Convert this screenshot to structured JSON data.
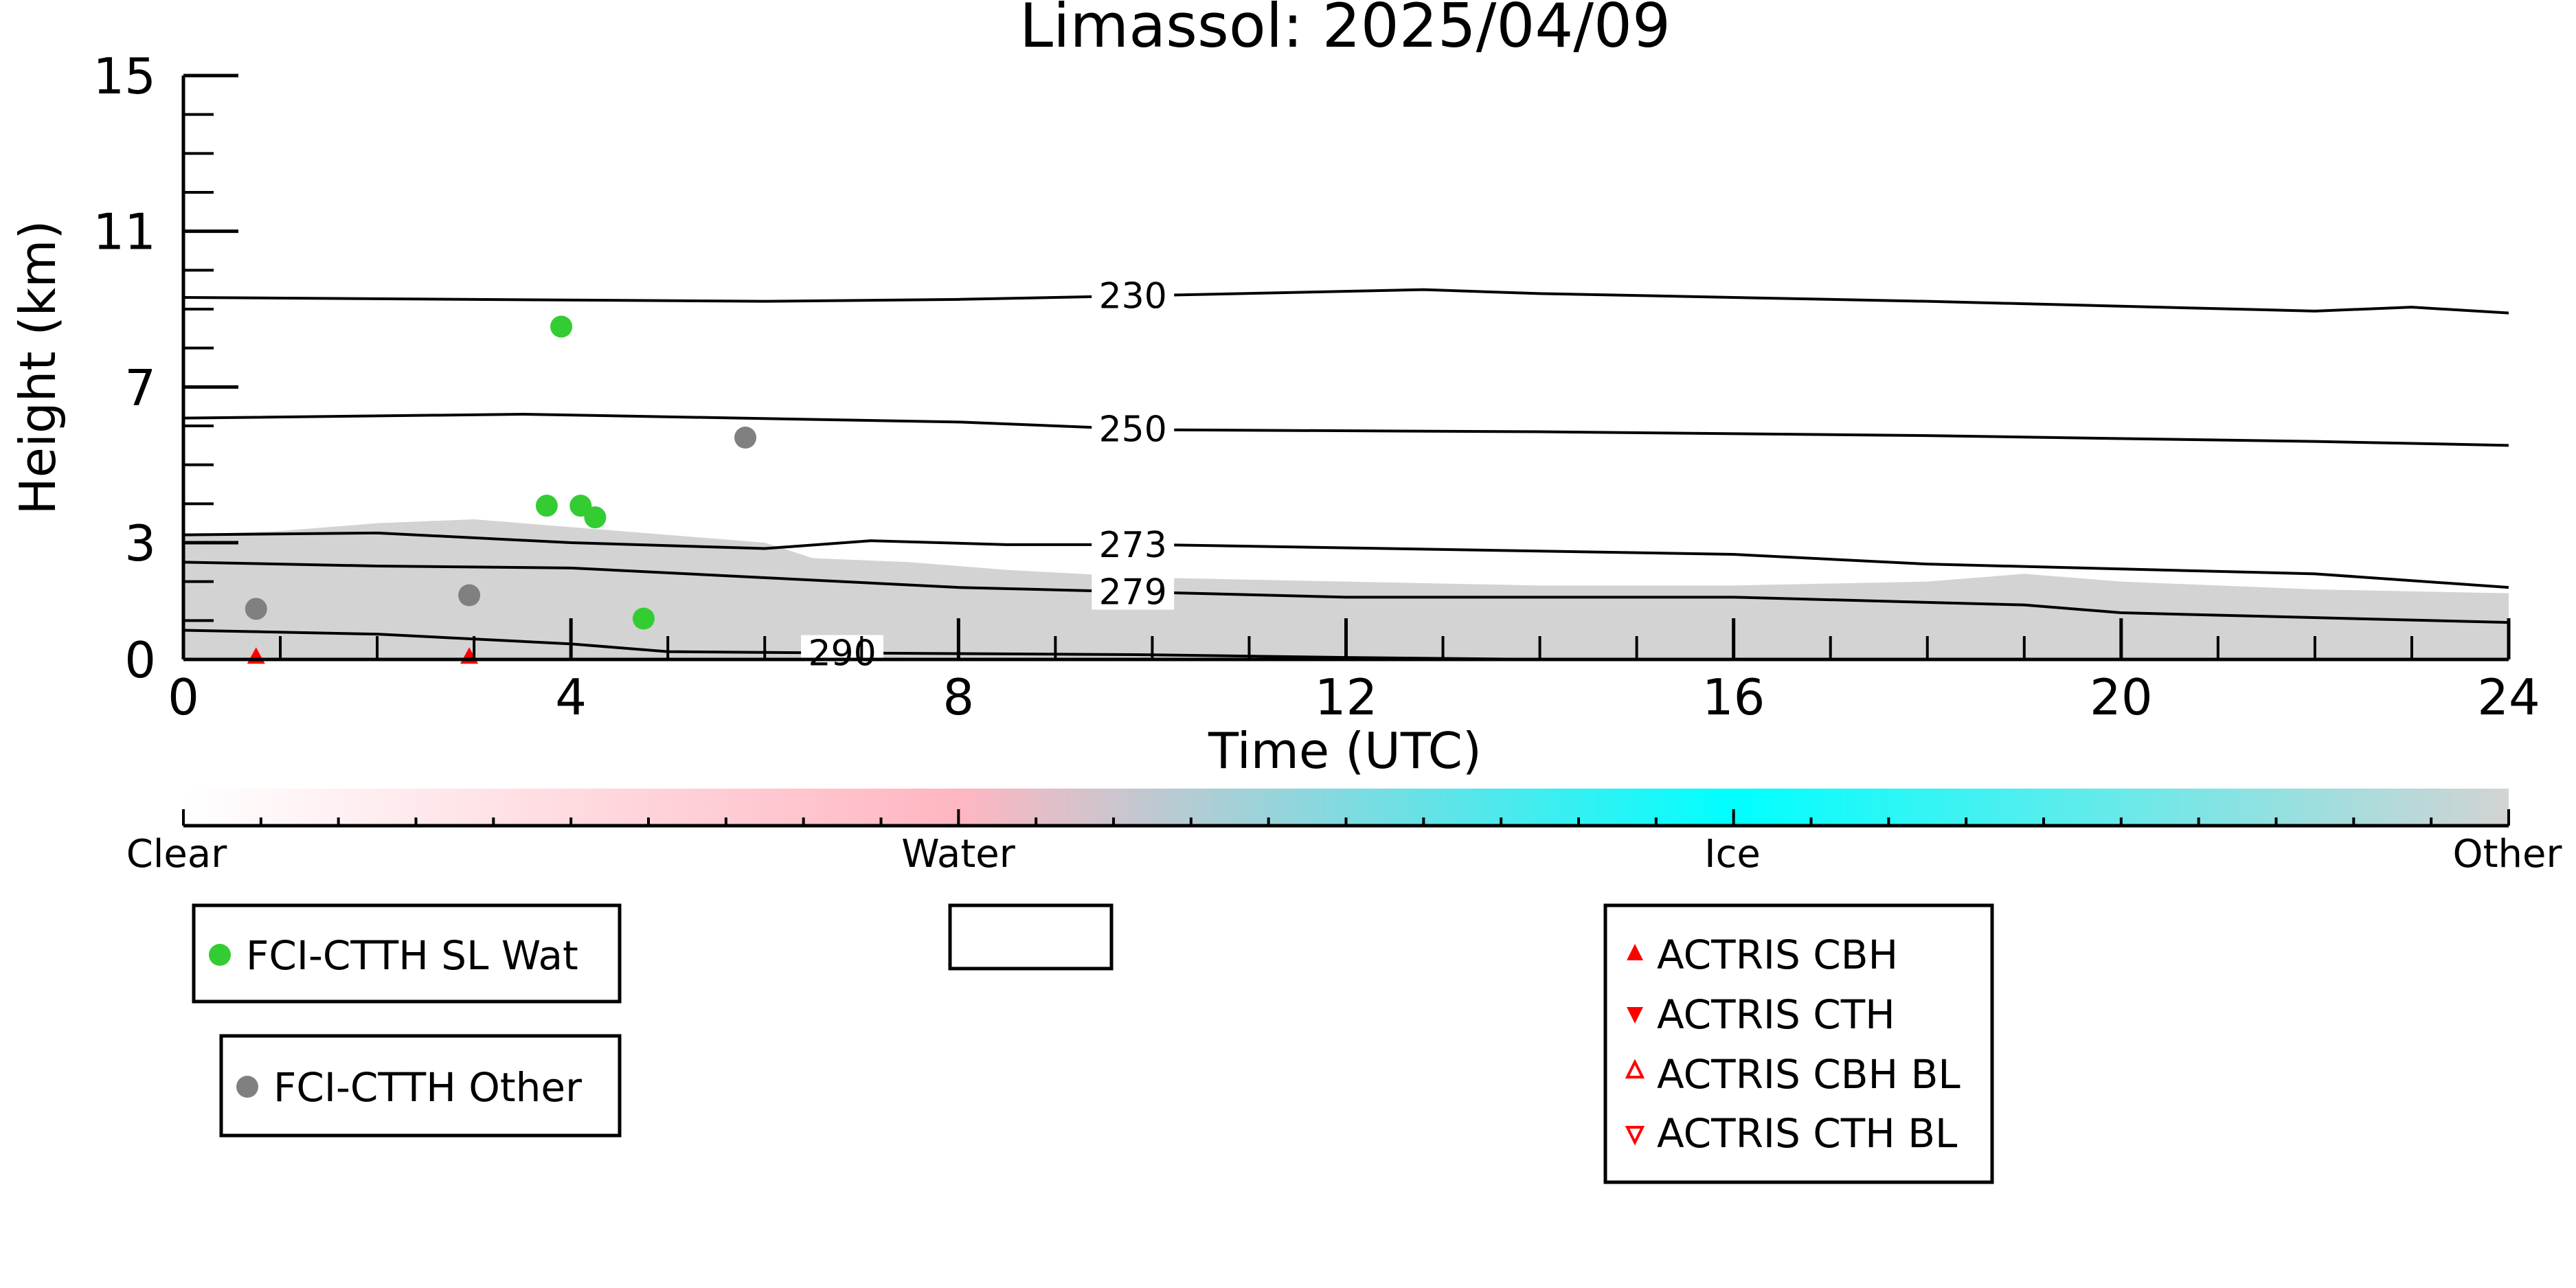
{
  "chart_data": {
    "type": "scatter",
    "title": "Limassol: 2025/04/09",
    "xlabel": "Time (UTC)",
    "ylabel": "Height (km)",
    "xlim": [
      0,
      24
    ],
    "ylim": [
      0,
      15
    ],
    "xticks": [
      "0",
      "4",
      "8",
      "12",
      "16",
      "20",
      "24"
    ],
    "yticks": [
      "0",
      "3",
      "7",
      "11",
      "15"
    ],
    "grid": false,
    "background": {
      "description_color": "#d3d3d3",
      "cloud_mass": [
        [
          0.0,
          3.2
        ],
        [
          1.0,
          3.3
        ],
        [
          2.0,
          3.5
        ],
        [
          3.0,
          3.6
        ],
        [
          4.0,
          3.4
        ],
        [
          5.0,
          3.2
        ],
        [
          6.0,
          3.0
        ],
        [
          6.5,
          2.6
        ],
        [
          7.5,
          2.5
        ],
        [
          8.5,
          2.3
        ],
        [
          10.0,
          2.1
        ],
        [
          12.0,
          2.0
        ],
        [
          14.0,
          1.9
        ],
        [
          16.0,
          1.9
        ],
        [
          18.0,
          2.0
        ],
        [
          19.0,
          2.2
        ],
        [
          20.0,
          2.0
        ],
        [
          22.0,
          1.8
        ],
        [
          24.0,
          1.7
        ]
      ]
    },
    "isotherms": [
      {
        "label": "230",
        "label_x": 9.8,
        "points": [
          [
            0,
            9.3
          ],
          [
            6,
            9.2
          ],
          [
            8,
            9.25
          ],
          [
            10,
            9.35
          ],
          [
            12.8,
            9.5
          ],
          [
            14,
            9.4
          ],
          [
            18,
            9.2
          ],
          [
            22,
            8.95
          ],
          [
            23,
            9.05
          ],
          [
            24,
            8.9
          ]
        ]
      },
      {
        "label": "250",
        "label_x": 9.8,
        "points": [
          [
            0,
            6.2
          ],
          [
            3.5,
            6.3
          ],
          [
            8,
            6.1
          ],
          [
            10,
            5.9
          ],
          [
            14,
            5.85
          ],
          [
            18,
            5.75
          ],
          [
            22,
            5.6
          ],
          [
            24,
            5.5
          ]
        ]
      },
      {
        "label": "273",
        "label_x": 9.8,
        "points": [
          [
            0,
            3.2
          ],
          [
            2,
            3.25
          ],
          [
            4,
            3.0
          ],
          [
            6,
            2.85
          ],
          [
            7.1,
            3.05
          ],
          [
            8.5,
            2.95
          ],
          [
            10,
            2.95
          ],
          [
            16,
            2.7
          ],
          [
            18,
            2.45
          ],
          [
            22,
            2.2
          ],
          [
            24,
            1.85
          ]
        ]
      },
      {
        "label": "279",
        "label_x": 9.8,
        "points": [
          [
            0,
            2.5
          ],
          [
            2,
            2.4
          ],
          [
            4,
            2.35
          ],
          [
            6,
            2.1
          ],
          [
            8,
            1.85
          ],
          [
            12,
            1.6
          ],
          [
            16,
            1.6
          ],
          [
            19,
            1.4
          ],
          [
            20,
            1.2
          ],
          [
            24,
            0.95
          ]
        ]
      },
      {
        "label": "290",
        "label_x": 6.8,
        "points": [
          [
            0,
            0.75
          ],
          [
            2,
            0.65
          ],
          [
            4,
            0.4
          ],
          [
            5,
            0.2
          ],
          [
            6,
            0.18
          ],
          [
            8,
            0.15
          ],
          [
            10,
            0.12
          ],
          [
            12,
            0.05
          ],
          [
            14,
            0.0
          ]
        ]
      }
    ],
    "series": [
      {
        "name": "FCI-CTTH SL Wat",
        "color": "#33cc33",
        "marker": "circle",
        "x": [
          3.9,
          3.75,
          4.1,
          4.25,
          4.75
        ],
        "y": [
          8.55,
          3.95,
          3.95,
          3.65,
          1.05
        ]
      },
      {
        "name": "FCI-CTTH Other",
        "color": "#808080",
        "marker": "circle",
        "x": [
          0.75,
          2.95,
          5.8
        ],
        "y": [
          1.3,
          1.65,
          5.7
        ]
      },
      {
        "name": "ACTRIS CBH",
        "color": "#ff0000",
        "marker": "triangle-up",
        "x": [
          0.75,
          2.95
        ],
        "y": [
          0.03,
          0.03
        ]
      },
      {
        "name": "ACTRIS CTH",
        "color": "#ff0000",
        "marker": "triangle-down",
        "x": [],
        "y": []
      },
      {
        "name": "ACTRIS CBH BL",
        "color": "#ff0000",
        "marker": "triangle-up-open",
        "x": [],
        "y": []
      },
      {
        "name": "ACTRIS CTH BL",
        "color": "#ff0000",
        "marker": "triangle-down-open",
        "x": [],
        "y": []
      }
    ],
    "colorbar": {
      "labels": [
        "Clear",
        "Water",
        "Ice",
        "Other"
      ],
      "stops": [
        "#ffffff",
        "#ffb6c1",
        "#00ffff",
        "#d3d3d3"
      ]
    },
    "legends": [
      {
        "entries": [
          "FCI-CTTH SL Wat"
        ]
      },
      {
        "entries": []
      },
      {
        "entries": [
          "ACTRIS CBH",
          "ACTRIS CTH",
          "ACTRIS CBH BL",
          "ACTRIS CTH BL"
        ]
      },
      {
        "entries": [
          "FCI-CTTH Other"
        ]
      }
    ]
  }
}
